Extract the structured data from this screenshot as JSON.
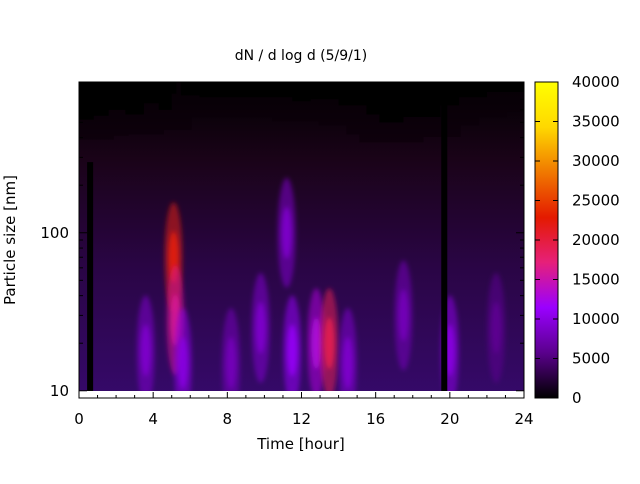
{
  "chart_data": {
    "type": "heatmap",
    "title": "dN / d log d (5/9/1)",
    "xlabel": "Time [hour]",
    "ylabel": "Particle size [nm]",
    "xlim": [
      0,
      24
    ],
    "ylim": [
      9,
      900
    ],
    "y_scale": "log",
    "x_ticks": [
      0,
      4,
      8,
      12,
      16,
      20,
      24
    ],
    "y_ticks": [
      10,
      100
    ],
    "colorbar": {
      "min": 0,
      "max": 40000,
      "ticks": [
        0,
        5000,
        10000,
        15000,
        20000,
        25000,
        30000,
        35000,
        40000
      ],
      "colormap": "gnuplot",
      "colors": [
        "#000000",
        "#5a008c",
        "#9a00ff",
        "#e6207a",
        "#e41a00",
        "#f07800",
        "#ffd800",
        "#ffff00"
      ]
    },
    "grid": false,
    "intensity_features": [
      {
        "time": 3.6,
        "size": 18,
        "value": 9000
      },
      {
        "time": 5.1,
        "size": 70,
        "value": 22000
      },
      {
        "time": 5.2,
        "size": 28,
        "value": 16000
      },
      {
        "time": 5.6,
        "size": 15,
        "value": 10000
      },
      {
        "time": 8.2,
        "size": 15,
        "value": 8000
      },
      {
        "time": 9.8,
        "size": 25,
        "value": 9000
      },
      {
        "time": 11.2,
        "size": 100,
        "value": 9000
      },
      {
        "time": 11.5,
        "size": 18,
        "value": 11000
      },
      {
        "time": 12.8,
        "size": 20,
        "value": 13000
      },
      {
        "time": 13.5,
        "size": 20,
        "value": 19000
      },
      {
        "time": 14.5,
        "size": 15,
        "value": 9000
      },
      {
        "time": 17.5,
        "size": 30,
        "value": 8000
      },
      {
        "time": 20.0,
        "size": 18,
        "value": 10000
      },
      {
        "time": 22.5,
        "size": 25,
        "value": 6000
      }
    ],
    "upper_cutoff": [
      {
        "time": 0.0,
        "size": 520
      },
      {
        "time": 0.5,
        "size": 520
      },
      {
        "time": 0.8,
        "size": 550
      },
      {
        "time": 1.6,
        "size": 600
      },
      {
        "time": 2.5,
        "size": 560
      },
      {
        "time": 3.5,
        "size": 660
      },
      {
        "time": 4.3,
        "size": 600
      },
      {
        "time": 5.0,
        "size": 760
      },
      {
        "time": 5.25,
        "size": 1000
      },
      {
        "time": 5.5,
        "size": 740
      },
      {
        "time": 6.5,
        "size": 720
      },
      {
        "time": 8.5,
        "size": 720
      },
      {
        "time": 10.0,
        "size": 720
      },
      {
        "time": 11.5,
        "size": 680
      },
      {
        "time": 12.5,
        "size": 700
      },
      {
        "time": 14.0,
        "size": 640
      },
      {
        "time": 15.5,
        "size": 560
      },
      {
        "time": 16.2,
        "size": 500
      },
      {
        "time": 17.5,
        "size": 540
      },
      {
        "time": 19.5,
        "size": 640
      },
      {
        "time": 20.5,
        "size": 720
      },
      {
        "time": 22.0,
        "size": 780
      },
      {
        "time": 23.0,
        "size": 780
      },
      {
        "time": 24.0,
        "size": 740
      }
    ],
    "gaps": [
      {
        "time": 0.6,
        "from_size": 9,
        "to_size": 280
      },
      {
        "time": 19.7,
        "from_size": 9,
        "to_size": 900
      }
    ]
  }
}
